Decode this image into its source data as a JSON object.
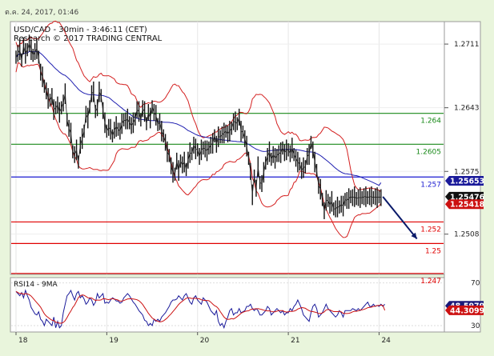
{
  "header": {
    "timestamp": "ต.ค. 24, 2017, 01:46"
  },
  "chart_data": [
    {
      "type": "line",
      "title": "USD/CAD - 30min - 3:46:11 (CET)",
      "subtitle": "Research © 2017 TRADING CENTRAL",
      "ylim": [
        1.2465,
        1.2735
      ],
      "y_ticks": [
        "1.2711",
        "1.2643",
        "1.2575",
        "1.2508"
      ],
      "y_tick_values": [
        1.2711,
        1.2643,
        1.2575,
        1.2508
      ],
      "x_ticks": [
        "18",
        "19",
        "20",
        "21",
        "24"
      ],
      "x_tick_index": [
        0,
        48,
        96,
        144,
        192
      ],
      "x_count": 200,
      "levels": [
        {
          "label": "1.264",
          "value": 1.2637,
          "color": "#1a8a1a"
        },
        {
          "label": "1.2605",
          "value": 1.2604,
          "color": "#1a8a1a"
        },
        {
          "label": "1.257",
          "value": 1.2569,
          "color": "#1a1ad0"
        },
        {
          "label": "1.252",
          "value": 1.2521,
          "color": "#e00000"
        },
        {
          "label": "1.25",
          "value": 1.2498,
          "color": "#e00000"
        },
        {
          "label": "1.247",
          "value": 1.2466,
          "color": "#e00000"
        }
      ],
      "price_badges": [
        {
          "label": "1.25653",
          "value": 1.2565,
          "color": "#1a1a9a"
        },
        {
          "label": "1.25476",
          "value": 1.2548,
          "color": "#111111"
        },
        {
          "label": "1.25418",
          "value": 1.254,
          "color": "#cc1111"
        }
      ],
      "series_price": [
        1.2697,
        1.2701,
        1.2705,
        1.2694,
        1.2709,
        1.2701,
        1.2705,
        1.2712,
        1.2705,
        1.2699,
        1.2703,
        1.2706,
        1.2697,
        1.2681,
        1.2676,
        1.2666,
        1.2661,
        1.2653,
        1.2651,
        1.2655,
        1.2641,
        1.2643,
        1.2646,
        1.2638,
        1.2643,
        1.2648,
        1.2658,
        1.263,
        1.2621,
        1.2616,
        1.2596,
        1.2593,
        1.2598,
        1.2585,
        1.2603,
        1.261,
        1.2618,
        1.2636,
        1.2632,
        1.2644,
        1.2658,
        1.266,
        1.2639,
        1.2643,
        1.266,
        1.2656,
        1.264,
        1.2627,
        1.2618,
        1.2622,
        1.262,
        1.2613,
        1.2619,
        1.2623,
        1.262,
        1.2618,
        1.2626,
        1.263,
        1.2629,
        1.2631,
        1.2627,
        1.2624,
        1.2627,
        1.2631,
        1.2641,
        1.2639,
        1.263,
        1.2642,
        1.2639,
        1.2626,
        1.2638,
        1.2632,
        1.2644,
        1.2638,
        1.2635,
        1.2625,
        1.2628,
        1.2618,
        1.2613,
        1.2606,
        1.2596,
        1.2592,
        1.2581,
        1.2574,
        1.2572,
        1.2586,
        1.2576,
        1.2586,
        1.2582,
        1.2585,
        1.2577,
        1.2587,
        1.2595,
        1.2594,
        1.2603,
        1.2599,
        1.2598,
        1.2591,
        1.2598,
        1.26,
        1.2599,
        1.2597,
        1.26,
        1.2603,
        1.2605,
        1.2613,
        1.2604,
        1.2612,
        1.2612,
        1.2614,
        1.2616,
        1.2618,
        1.2615,
        1.2618,
        1.2621,
        1.2628,
        1.2628,
        1.2626,
        1.2633,
        1.2618,
        1.2617,
        1.261,
        1.2602,
        1.2589,
        1.2575,
        1.255,
        1.257,
        1.2557,
        1.258,
        1.2563,
        1.2562,
        1.2574,
        1.2584,
        1.2591,
        1.2596,
        1.2588,
        1.2593,
        1.2589,
        1.2592,
        1.2594,
        1.2595,
        1.26,
        1.2595,
        1.2598,
        1.2598,
        1.2594,
        1.26,
        1.2593,
        1.2589,
        1.2585,
        1.2583,
        1.2576,
        1.2579,
        1.258,
        1.2591,
        1.2593,
        1.2606,
        1.2598,
        1.2585,
        1.2576,
        1.256,
        1.2556,
        1.2545,
        1.2533,
        1.2544,
        1.2544,
        1.2539,
        1.2543,
        1.2535,
        1.2535,
        1.2537,
        1.2537,
        1.254,
        1.2538,
        1.2545,
        1.2544,
        1.2546,
        1.2548,
        1.2547,
        1.2548,
        1.2546,
        1.2547,
        1.2547,
        1.2547,
        1.2548,
        1.2548,
        1.2547,
        1.2548,
        1.2548,
        1.2547,
        1.2548,
        1.2547,
        1.2548,
        1.2547
      ],
      "ma_end": 1.2566,
      "arrow": {
        "from_index": 194,
        "from_value": 1.2548,
        "to_index": 212,
        "to_value": 1.2503,
        "color": "#0a1a6a"
      }
    },
    {
      "type": "line",
      "title": "RSI14 - 9MA",
      "ylim": [
        24,
        75
      ],
      "y_ticks": [
        "70",
        "30"
      ],
      "y_tick_values": [
        70,
        30
      ],
      "badges": [
        {
          "label": "48.5979",
          "value": 48.6,
          "color": "#1a1a7a"
        },
        {
          "label": "44.3099",
          "value": 44.3,
          "color": "#cc1111"
        }
      ],
      "series_rsi": [
        62,
        60,
        58,
        61,
        56,
        63,
        58,
        54,
        47,
        44,
        41,
        40,
        43,
        36,
        34,
        30,
        36,
        34,
        32,
        30,
        38,
        28,
        34,
        28,
        30,
        42,
        50,
        58,
        60,
        63,
        58,
        54,
        60,
        62,
        56,
        58,
        55,
        50,
        52,
        56,
        54,
        49,
        52,
        60,
        56,
        58,
        60,
        51,
        52,
        51,
        54,
        56,
        55,
        53,
        53,
        51,
        52,
        56,
        58,
        60,
        58,
        55,
        52,
        50,
        47,
        44,
        42,
        40,
        35,
        34,
        30,
        32,
        30,
        36,
        34,
        36,
        34,
        38,
        40,
        42,
        45,
        48,
        52,
        54,
        54,
        55,
        58,
        56,
        54,
        58,
        60,
        56,
        52,
        50,
        56,
        58,
        54,
        52,
        50,
        56,
        54,
        52,
        48,
        44,
        42,
        40,
        44,
        34,
        30,
        32,
        28,
        34,
        38,
        44,
        46,
        40,
        42,
        42,
        46,
        42,
        43,
        44,
        48,
        48,
        50,
        46,
        44,
        46,
        44,
        40,
        40,
        42,
        44,
        48,
        46,
        40,
        42,
        44,
        46,
        44,
        42,
        44,
        40,
        42,
        42,
        46,
        44,
        48,
        50,
        54,
        50,
        46,
        40,
        38,
        36,
        34,
        42,
        48,
        50,
        46,
        38,
        40,
        42,
        46,
        50,
        46,
        44,
        42,
        40,
        38,
        40,
        44,
        42,
        38,
        44,
        44,
        44,
        44,
        46,
        45,
        44,
        46,
        44,
        46,
        48,
        50,
        52,
        48,
        48,
        50,
        48,
        49,
        48,
        50,
        48,
        50
      ],
      "ma_end": 44.3
    }
  ]
}
